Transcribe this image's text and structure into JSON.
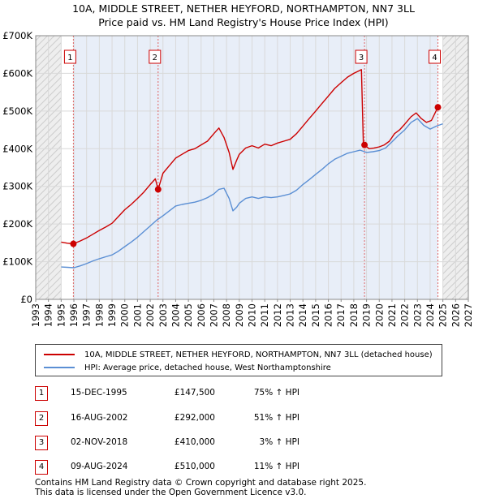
{
  "chart_data": {
    "type": "line",
    "title": "10A, MIDDLE STREET, NETHER HEYFORD, NORTHAMPTON, NN7 3LL",
    "subtitle": "Price paid vs. HM Land Registry's House Price Index (HPI)",
    "xlabel": "",
    "ylabel": "",
    "xlim": [
      1993,
      2027
    ],
    "ylim": [
      0,
      700000
    ],
    "x_ticks": [
      "1993",
      "1994",
      "1995",
      "1996",
      "1997",
      "1998",
      "1999",
      "2000",
      "2001",
      "2002",
      "2003",
      "2004",
      "2005",
      "2006",
      "2007",
      "2008",
      "2009",
      "2010",
      "2011",
      "2012",
      "2013",
      "2014",
      "2015",
      "2016",
      "2017",
      "2018",
      "2019",
      "2020",
      "2021",
      "2022",
      "2023",
      "2024",
      "2025",
      "2026",
      "2027"
    ],
    "y_ticks": [
      {
        "value": 0,
        "label": "£0"
      },
      {
        "value": 100000,
        "label": "£100K"
      },
      {
        "value": 200000,
        "label": "£200K"
      },
      {
        "value": 300000,
        "label": "£300K"
      },
      {
        "value": 400000,
        "label": "£400K"
      },
      {
        "value": 500000,
        "label": "£500K"
      },
      {
        "value": 600000,
        "label": "£600K"
      },
      {
        "value": 700000,
        "label": "£700K"
      }
    ],
    "hatched_ranges": [
      [
        1993,
        1995
      ],
      [
        2025,
        2027
      ]
    ],
    "series": [
      {
        "name": "10A, MIDDLE STREET, NETHER HEYFORD, NORTHAMPTON, NN7 3LL (detached house)",
        "color": "#cc0000",
        "x": [
          1995.0,
          1995.5,
          1995.96,
          1996.5,
          1997.0,
          1997.5,
          1998.0,
          1998.5,
          1999.0,
          1999.5,
          2000.0,
          2000.5,
          2001.0,
          2001.5,
          2002.0,
          2002.4,
          2002.62,
          2003.0,
          2003.5,
          2004.0,
          2004.5,
          2005.0,
          2005.5,
          2006.0,
          2006.5,
          2007.0,
          2007.4,
          2007.8,
          2008.2,
          2008.5,
          2008.8,
          2009.0,
          2009.5,
          2010.0,
          2010.5,
          2011.0,
          2011.5,
          2012.0,
          2012.5,
          2013.0,
          2013.5,
          2014.0,
          2014.5,
          2015.0,
          2015.5,
          2016.0,
          2016.5,
          2017.0,
          2017.5,
          2018.0,
          2018.3,
          2018.6,
          2018.75,
          2018.84,
          2019.2,
          2019.6,
          2020.0,
          2020.4,
          2020.8,
          2021.2,
          2021.6,
          2022.0,
          2022.5,
          2022.9,
          2023.3,
          2023.7,
          2024.1,
          2024.61,
          2024.75
        ],
        "values": [
          152000,
          149000,
          147500,
          155000,
          163000,
          173000,
          183000,
          192000,
          202000,
          220000,
          238000,
          252000,
          268000,
          285000,
          305000,
          320000,
          292000,
          335000,
          355000,
          375000,
          385000,
          395000,
          400000,
          410000,
          420000,
          440000,
          455000,
          430000,
          390000,
          345000,
          370000,
          385000,
          402000,
          408000,
          402000,
          412000,
          408000,
          415000,
          420000,
          425000,
          440000,
          460000,
          480000,
          500000,
          520000,
          540000,
          560000,
          575000,
          590000,
          600000,
          605000,
          610000,
          410000,
          410000,
          400000,
          402000,
          405000,
          410000,
          420000,
          440000,
          450000,
          465000,
          485000,
          495000,
          480000,
          470000,
          475000,
          510000,
          515000
        ]
      },
      {
        "name": "HPI: Average price, detached house, West Northamptonshire",
        "color": "#5b8fd4",
        "x": [
          1995.0,
          1995.5,
          1996.0,
          1996.5,
          1997.0,
          1997.5,
          1998.0,
          1998.5,
          1999.0,
          1999.5,
          2000.0,
          2000.5,
          2001.0,
          2001.5,
          2002.0,
          2002.5,
          2003.0,
          2003.5,
          2004.0,
          2004.5,
          2005.0,
          2005.5,
          2006.0,
          2006.5,
          2007.0,
          2007.4,
          2007.8,
          2008.2,
          2008.5,
          2008.8,
          2009.0,
          2009.5,
          2010.0,
          2010.5,
          2011.0,
          2011.5,
          2012.0,
          2012.5,
          2013.0,
          2013.5,
          2014.0,
          2014.5,
          2015.0,
          2015.5,
          2016.0,
          2016.5,
          2017.0,
          2017.5,
          2018.0,
          2018.5,
          2019.0,
          2019.5,
          2020.0,
          2020.5,
          2021.0,
          2021.5,
          2022.0,
          2022.5,
          2023.0,
          2023.5,
          2024.0,
          2024.5,
          2025.0
        ],
        "values": [
          86000,
          85000,
          84000,
          89000,
          95000,
          102000,
          108000,
          113000,
          118000,
          128000,
          140000,
          152000,
          165000,
          180000,
          195000,
          210000,
          222000,
          235000,
          248000,
          252000,
          255000,
          258000,
          263000,
          270000,
          280000,
          292000,
          295000,
          268000,
          235000,
          245000,
          255000,
          268000,
          272000,
          268000,
          272000,
          270000,
          272000,
          276000,
          280000,
          290000,
          305000,
          318000,
          332000,
          345000,
          360000,
          372000,
          380000,
          388000,
          392000,
          396000,
          390000,
          392000,
          395000,
          402000,
          418000,
          435000,
          450000,
          470000,
          480000,
          462000,
          452000,
          460000,
          466000
        ]
      }
    ],
    "sales": [
      {
        "num": "1",
        "x": 1995.96,
        "value": 147500,
        "date": "15-DEC-1995",
        "price": "£147,500",
        "hpi": "75% ↑ HPI"
      },
      {
        "num": "2",
        "x": 2002.62,
        "value": 292000,
        "date": "16-AUG-2002",
        "price": "£292,000",
        "hpi": "51% ↑ HPI"
      },
      {
        "num": "3",
        "x": 2018.84,
        "value": 410000,
        "date": "02-NOV-2018",
        "price": "£410,000",
        "hpi": "3% ↑ HPI"
      },
      {
        "num": "4",
        "x": 2024.61,
        "value": 510000,
        "date": "09-AUG-2024",
        "price": "£510,000",
        "hpi": "11% ↑ HPI"
      }
    ],
    "legend_position": "below"
  },
  "footer": {
    "line1": "Contains HM Land Registry data © Crown copyright and database right 2025.",
    "line2": "This data is licensed under the Open Government Licence v3.0."
  }
}
